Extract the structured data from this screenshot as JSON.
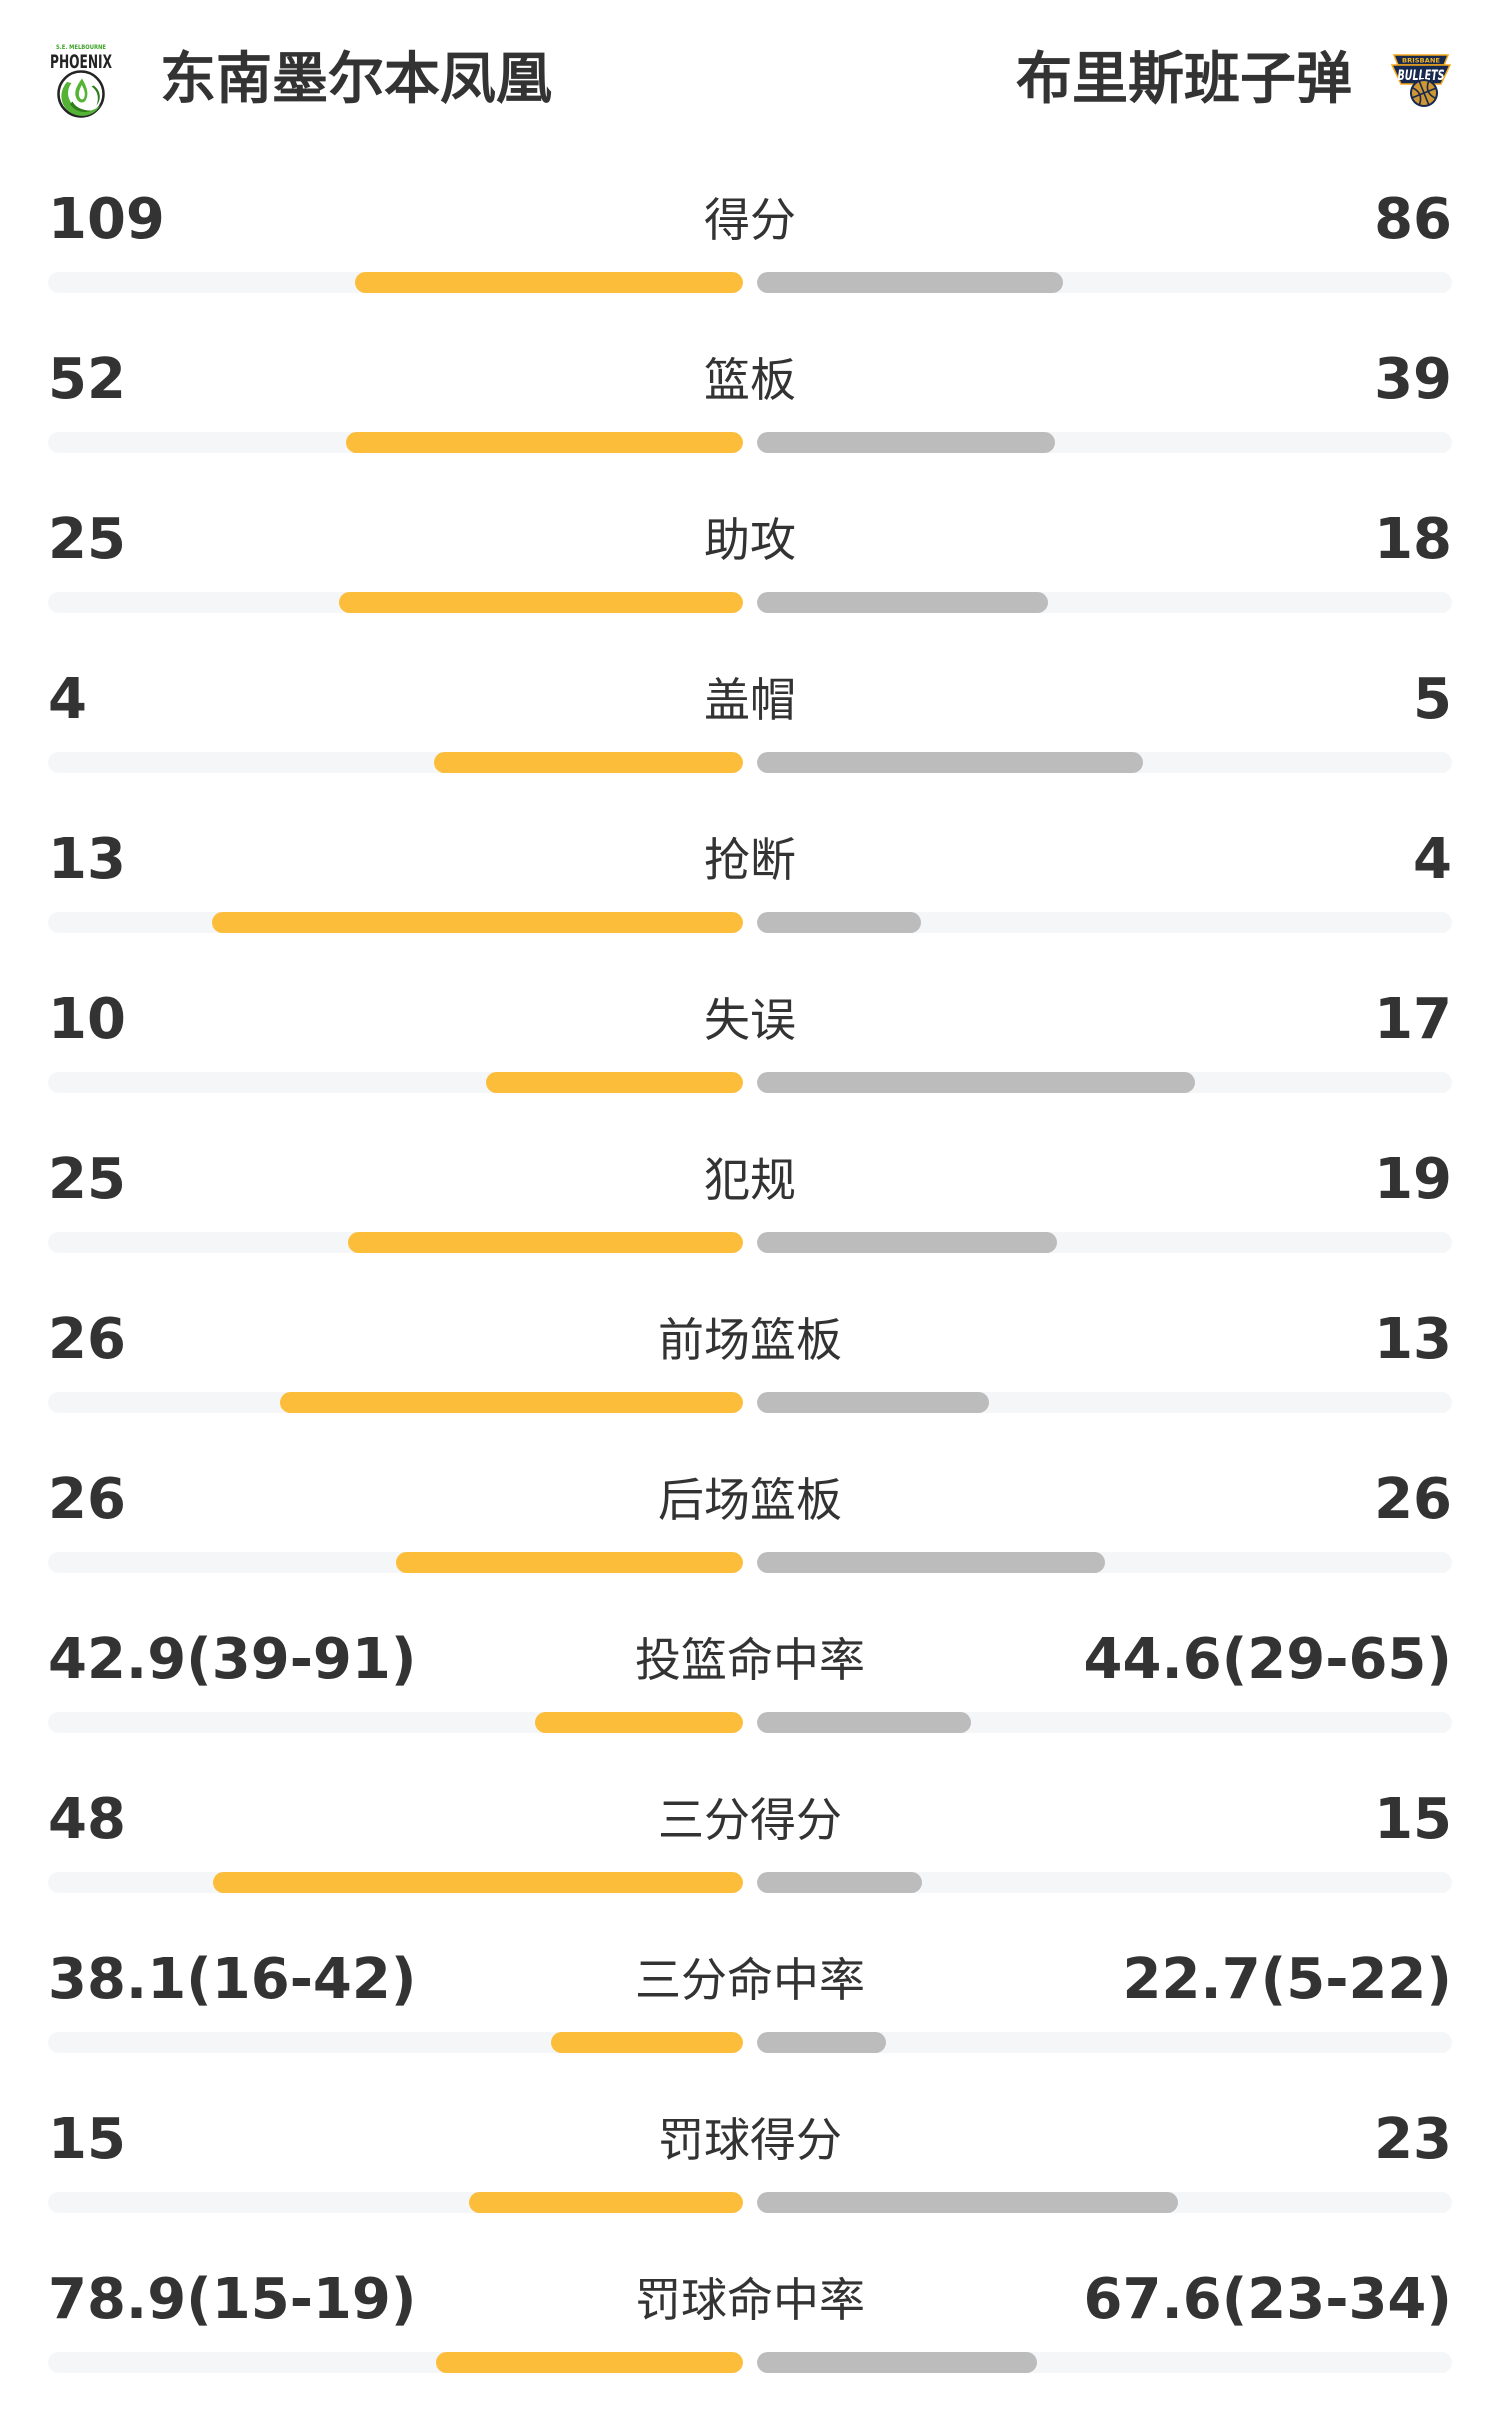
{
  "header": {
    "home_team": {
      "name": "东南墨尔本凤凰",
      "logo_text_top": "S.E. MELBOURNE",
      "logo_text_main": "PHOENIX"
    },
    "away_team": {
      "name": "布里斯班子弹",
      "logo_text_top": "BRISBANE",
      "logo_text_main": "BULLETS"
    }
  },
  "colors": {
    "home_bar": "#fcbd3a",
    "away_bar": "#bcbcbc",
    "track": "#f5f6f8",
    "text": "#333333",
    "phoenix_green": "#54b335",
    "phoenix_dark_green": "#2e7d1c",
    "phoenix_dark": "#242424",
    "bullets_navy": "#17294e",
    "bullets_gold": "#f3a71b",
    "bullets_ball": "#cf9733"
  },
  "chart_data": {
    "type": "bar",
    "orientation": "horizontal-paired",
    "legend_position": "top",
    "teams": [
      "东南墨尔本凤凰",
      "布里斯班子弹"
    ],
    "categories": [
      "得分",
      "篮板",
      "助攻",
      "盖帽",
      "抢断",
      "失误",
      "犯规",
      "前场篮板",
      "后场篮板",
      "投篮命中率",
      "三分得分",
      "三分命中率",
      "罚球得分",
      "罚球命中率"
    ],
    "fill_rule": "count rows: value/(home+away); percentage rows: made/(made+attempts)",
    "rows": [
      {
        "label": "得分",
        "home": {
          "display": "109",
          "value": 109
        },
        "away": {
          "display": "86",
          "value": 86
        }
      },
      {
        "label": "篮板",
        "home": {
          "display": "52",
          "value": 52
        },
        "away": {
          "display": "39",
          "value": 39
        }
      },
      {
        "label": "助攻",
        "home": {
          "display": "25",
          "value": 25
        },
        "away": {
          "display": "18",
          "value": 18
        }
      },
      {
        "label": "盖帽",
        "home": {
          "display": "4",
          "value": 4
        },
        "away": {
          "display": "5",
          "value": 5
        }
      },
      {
        "label": "抢断",
        "home": {
          "display": "13",
          "value": 13
        },
        "away": {
          "display": "4",
          "value": 4
        }
      },
      {
        "label": "失误",
        "home": {
          "display": "10",
          "value": 10
        },
        "away": {
          "display": "17",
          "value": 17
        }
      },
      {
        "label": "犯规",
        "home": {
          "display": "25",
          "value": 25
        },
        "away": {
          "display": "19",
          "value": 19
        }
      },
      {
        "label": "前场篮板",
        "home": {
          "display": "26",
          "value": 26
        },
        "away": {
          "display": "13",
          "value": 13
        }
      },
      {
        "label": "后场篮板",
        "home": {
          "display": "26",
          "value": 26
        },
        "away": {
          "display": "26",
          "value": 26
        }
      },
      {
        "label": "投篮命中率",
        "home": {
          "display": "42.9(39-91)",
          "pct": 42.9,
          "made": 39,
          "att": 91
        },
        "away": {
          "display": "44.6(29-65)",
          "pct": 44.6,
          "made": 29,
          "att": 65
        }
      },
      {
        "label": "三分得分",
        "home": {
          "display": "48",
          "value": 48
        },
        "away": {
          "display": "15",
          "value": 15
        }
      },
      {
        "label": "三分命中率",
        "home": {
          "display": "38.1(16-42)",
          "pct": 38.1,
          "made": 16,
          "att": 42
        },
        "away": {
          "display": "22.7(5-22)",
          "pct": 22.7,
          "made": 5,
          "att": 22
        }
      },
      {
        "label": "罚球得分",
        "home": {
          "display": "15",
          "value": 15
        },
        "away": {
          "display": "23",
          "value": 23
        }
      },
      {
        "label": "罚球命中率",
        "home": {
          "display": "78.9(15-19)",
          "pct": 78.9,
          "made": 15,
          "att": 19
        },
        "away": {
          "display": "67.6(23-34)",
          "pct": 67.6,
          "made": 23,
          "att": 34
        }
      }
    ]
  }
}
